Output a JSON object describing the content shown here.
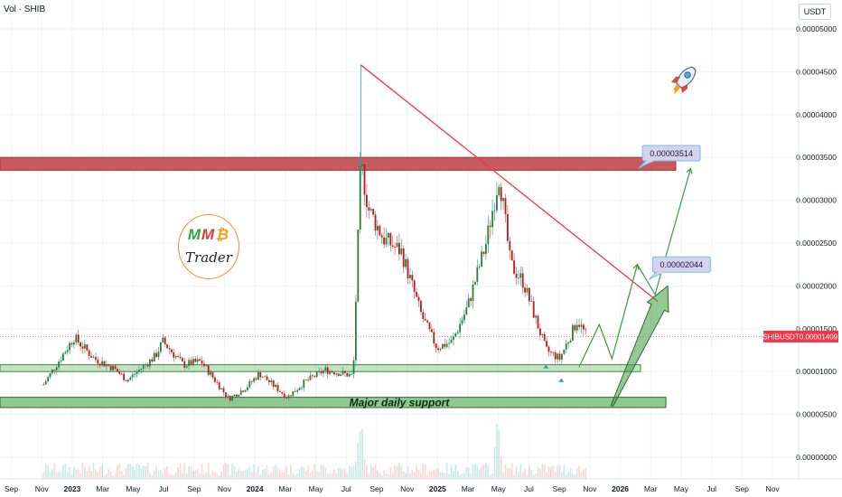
{
  "header": {
    "symbol_label": "Vol · SHIB"
  },
  "price_axis": {
    "unit": "USDT",
    "ticks": [
      "0.00005000",
      "0.00004500",
      "0.00004000",
      "0.00003500",
      "0.00003000",
      "0.00002500",
      "0.00002000",
      "0.00001500",
      "0.00001000",
      "0.00000500",
      "0.00000000"
    ],
    "current_label": "SHIBUSDT",
    "current_value": "0.00001409"
  },
  "time_axis": {
    "ticks": [
      "Jul",
      "Sep",
      "Nov",
      "2023",
      "Mar",
      "May",
      "Jul",
      "Sep",
      "Nov",
      "2024",
      "Mar",
      "May",
      "Jul",
      "Sep",
      "Nov",
      "2025",
      "Mar",
      "May",
      "Jul",
      "Sep",
      "Nov",
      "2026",
      "Mar",
      "May",
      "Jul",
      "Sep",
      "Nov"
    ]
  },
  "annotations": {
    "target_1": "0.00003514",
    "target_2": "0.00002044",
    "support_label": "Major daily support"
  },
  "logo": {
    "letters": [
      "M",
      "M",
      "₿"
    ],
    "subtitle": "Trader"
  },
  "colors": {
    "up": "#26a69a",
    "down": "#ef5350",
    "up_body": "#2e7d32",
    "down_body": "#b71c1c",
    "resistance_fill": "#c85a5e",
    "support_fill": "#7dbf7d",
    "trendline": "#f23645",
    "projection": "#3d9b3d",
    "price_badge": "#f23645",
    "callout_fill": "#d5d2ef",
    "callout_border": "#6ec1e4"
  },
  "chart_data": {
    "type": "candlestick",
    "title": "",
    "x_range": [
      "2022-06",
      "2026-12"
    ],
    "y_range": [
      0.0,
      5e-05
    ],
    "grid": true,
    "price_path": [
      {
        "x": "2022-06-10",
        "y": 8.5e-06
      },
      {
        "x": "2022-07-05",
        "y": 1.08e-05
      },
      {
        "x": "2022-08-10",
        "y": 1.4e-05
      },
      {
        "x": "2022-09-20",
        "y": 1.15e-05
      },
      {
        "x": "2022-10-25",
        "y": 1.05e-05
      },
      {
        "x": "2022-11-25",
        "y": 9e-06
      },
      {
        "x": "2023-01-20",
        "y": 1.18e-05
      },
      {
        "x": "2023-02-05",
        "y": 1.35e-05
      },
      {
        "x": "2023-03-15",
        "y": 1.08e-05
      },
      {
        "x": "2023-04-20",
        "y": 1.12e-05
      },
      {
        "x": "2023-06-15",
        "y": 6.8e-06
      },
      {
        "x": "2023-07-20",
        "y": 8.2e-06
      },
      {
        "x": "2023-08-15",
        "y": 9.8e-06
      },
      {
        "x": "2023-10-10",
        "y": 7e-06
      },
      {
        "x": "2023-11-15",
        "y": 8.8e-06
      },
      {
        "x": "2023-12-25",
        "y": 1.02e-05
      },
      {
        "x": "2024-02-20",
        "y": 9.5e-06
      },
      {
        "x": "2024-03-05",
        "y": 3.45e-05
      },
      {
        "x": "2024-03-20",
        "y": 2.9e-05
      },
      {
        "x": "2024-04-20",
        "y": 2.55e-05
      },
      {
        "x": "2024-05-25",
        "y": 2.4e-05
      },
      {
        "x": "2024-07-05",
        "y": 1.65e-05
      },
      {
        "x": "2024-08-05",
        "y": 1.28e-05
      },
      {
        "x": "2024-09-05",
        "y": 1.35e-05
      },
      {
        "x": "2024-10-05",
        "y": 1.75e-05
      },
      {
        "x": "2024-11-12",
        "y": 2.5e-05
      },
      {
        "x": "2024-12-08",
        "y": 3.3e-05
      },
      {
        "x": "2024-12-30",
        "y": 2.25e-05
      },
      {
        "x": "2025-01-25",
        "y": 2.05e-05
      },
      {
        "x": "2025-03-10",
        "y": 1.25e-05
      },
      {
        "x": "2025-04-07",
        "y": 1.15e-05
      },
      {
        "x": "2025-05-12",
        "y": 1.6e-05
      },
      {
        "x": "2025-05-30",
        "y": 1.41e-05
      }
    ],
    "volume_peak_dates": [
      "2024-03-05",
      "2024-12-05"
    ],
    "current_price": 1.409e-05,
    "resistance_zone": {
      "from": 3.35e-05,
      "to": 3.5e-05
    },
    "support_zone": {
      "from": 1e-05,
      "to": 1.08e-05
    },
    "major_support_zone": {
      "from": 5.8e-06,
      "to": 7e-06
    },
    "trendline": [
      {
        "x": "2024-03-05",
        "y": 4.58e-05
      },
      {
        "x": "2025-10-20",
        "y": 1.82e-05
      }
    ],
    "projection_path": [
      {
        "x": "2025-05-15",
        "y": 1.05e-05
      },
      {
        "x": "2025-06-25",
        "y": 1.55e-05
      },
      {
        "x": "2025-07-20",
        "y": 1.15e-05
      },
      {
        "x": "2025-09-10",
        "y": 2.25e-05
      },
      {
        "x": "2025-10-15",
        "y": 1.9e-05
      },
      {
        "x": "2025-12-25",
        "y": 3.37e-05
      }
    ],
    "big_arrow": [
      {
        "x": "2025-07-20",
        "y": 6e-06
      },
      {
        "x": "2025-11-10",
        "y": 2e-05
      }
    ],
    "targets": [
      {
        "label": "0.00003514",
        "x": "2025-09-20",
        "y": 3.55e-05
      },
      {
        "label": "0.00002044",
        "x": "2025-10-10",
        "y": 2.25e-05
      }
    ]
  }
}
